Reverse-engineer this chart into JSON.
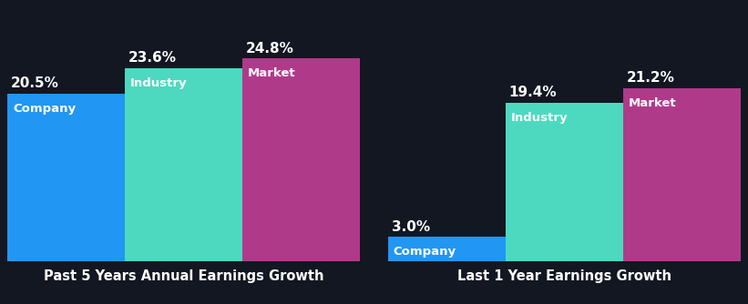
{
  "background_color": "#131722",
  "groups": [
    {
      "title": "Past 5 Years Annual Earnings Growth",
      "bars": [
        {
          "label": "Company",
          "value": 20.5,
          "color": "#2196f3"
        },
        {
          "label": "Industry",
          "value": 23.6,
          "color": "#4dd9c0"
        },
        {
          "label": "Market",
          "value": 24.8,
          "color": "#b03a8a"
        }
      ]
    },
    {
      "title": "Last 1 Year Earnings Growth",
      "bars": [
        {
          "label": "Company",
          "value": 3.0,
          "color": "#2196f3"
        },
        {
          "label": "Industry",
          "value": 19.4,
          "color": "#4dd9c0"
        },
        {
          "label": "Market",
          "value": 21.2,
          "color": "#b03a8a"
        }
      ]
    }
  ],
  "title_fontsize": 10.5,
  "label_fontsize": 9.5,
  "value_fontsize": 11,
  "title_color": "#ffffff",
  "label_color": "#ffffff",
  "value_color": "#ffffff",
  "axis_line_color": "#aaaaaa",
  "ylim_group1": [
    0,
    27.5
  ],
  "ylim_group2": [
    0,
    27.5
  ]
}
